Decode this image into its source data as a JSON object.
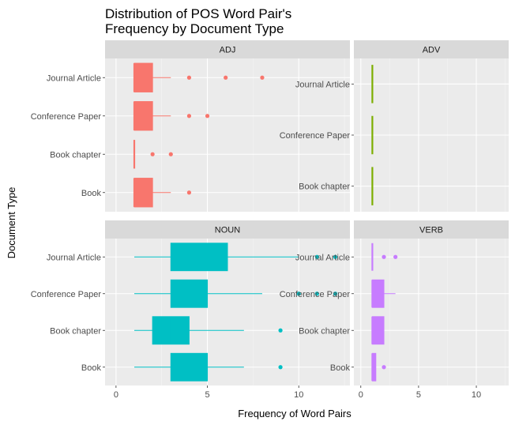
{
  "chart_data": {
    "type": "boxplot",
    "title": "Distribution of POS Word Pair's\nFrequency by Document Type",
    "xlabel": "Frequency of Word Pairs",
    "ylabel": "Document Type",
    "xlim": [
      -0.6,
      12.8
    ],
    "x_ticks": [
      0,
      5,
      10
    ],
    "facets": [
      {
        "name": "ADJ",
        "color": "#F8766D",
        "categories": [
          "Journal Article",
          "Conference Paper",
          "Book chapter",
          "Book"
        ],
        "boxes": [
          {
            "min": 1,
            "q1": 1,
            "median": 1,
            "q3": 2,
            "max": 3,
            "outliers": [
              4,
              6,
              8
            ]
          },
          {
            "min": 1,
            "q1": 1,
            "median": 1,
            "q3": 2,
            "max": 3,
            "outliers": [
              4,
              5
            ]
          },
          {
            "min": 1,
            "q1": 1,
            "median": 1,
            "q3": 1,
            "max": 1,
            "outliers": [
              2,
              3
            ]
          },
          {
            "min": 1,
            "q1": 1,
            "median": 1,
            "q3": 2,
            "max": 3,
            "outliers": [
              4
            ]
          }
        ]
      },
      {
        "name": "ADV",
        "color": "#7CAE00",
        "categories": [
          "Journal Article",
          "Conference Paper",
          "Book chapter"
        ],
        "boxes": [
          {
            "min": 1,
            "q1": 1,
            "median": 1,
            "q3": 1,
            "max": 1,
            "outliers": []
          },
          {
            "min": 1,
            "q1": 1,
            "median": 1,
            "q3": 1,
            "max": 1,
            "outliers": []
          },
          {
            "min": 1,
            "q1": 1,
            "median": 1,
            "q3": 1,
            "max": 1,
            "outliers": []
          }
        ]
      },
      {
        "name": "NOUN",
        "color": "#00BFC4",
        "categories": [
          "Journal Article",
          "Conference Paper",
          "Book chapter",
          "Book"
        ],
        "boxes": [
          {
            "min": 1,
            "q1": 3,
            "median": 4,
            "q3": 6.1,
            "max": 10,
            "outliers": [
              11,
              12
            ]
          },
          {
            "min": 1,
            "q1": 3,
            "median": 4,
            "q3": 5,
            "max": 8,
            "outliers": [
              10,
              11,
              12
            ]
          },
          {
            "min": 1,
            "q1": 2,
            "median": 3,
            "q3": 4,
            "max": 7,
            "outliers": [
              9
            ]
          },
          {
            "min": 1,
            "q1": 3,
            "median": 4,
            "q3": 5,
            "max": 7,
            "outliers": [
              9
            ]
          }
        ]
      },
      {
        "name": "VERB",
        "color": "#C77CFF",
        "categories": [
          "Journal Article",
          "Conference Paper",
          "Book chapter",
          "Book"
        ],
        "boxes": [
          {
            "min": 1,
            "q1": 1,
            "median": 1,
            "q3": 1,
            "max": 1,
            "outliers": [
              2,
              3
            ]
          },
          {
            "min": 1,
            "q1": 1,
            "median": 1,
            "q3": 2,
            "max": 3,
            "outliers": []
          },
          {
            "min": 1,
            "q1": 1,
            "median": 1,
            "q3": 2,
            "max": 2,
            "outliers": []
          },
          {
            "min": 1,
            "q1": 1,
            "median": 1,
            "q3": 1.3,
            "max": 1.3,
            "outliers": [
              2
            ]
          }
        ]
      }
    ],
    "grid": true,
    "legend": "none"
  }
}
